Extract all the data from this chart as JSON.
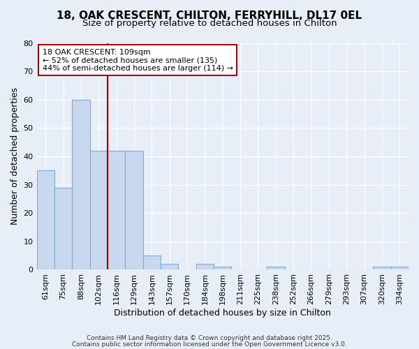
{
  "title_line1": "18, OAK CRESCENT, CHILTON, FERRYHILL, DL17 0EL",
  "title_line2": "Size of property relative to detached houses in Chilton",
  "xlabel": "Distribution of detached houses by size in Chilton",
  "ylabel": "Number of detached properties",
  "bin_labels": [
    "61sqm",
    "75sqm",
    "88sqm",
    "102sqm",
    "116sqm",
    "129sqm",
    "143sqm",
    "157sqm",
    "170sqm",
    "184sqm",
    "198sqm",
    "211sqm",
    "225sqm",
    "238sqm",
    "252sqm",
    "266sqm",
    "279sqm",
    "293sqm",
    "307sqm",
    "320sqm",
    "334sqm"
  ],
  "bar_values": [
    35,
    29,
    60,
    42,
    42,
    42,
    5,
    2,
    0,
    2,
    1,
    0,
    0,
    1,
    0,
    0,
    0,
    0,
    0,
    1,
    1
  ],
  "bar_color": "#c8d8ee",
  "bar_edge_color": "#7aadd4",
  "annotation_text": "18 OAK CRESCENT: 109sqm\n← 52% of detached houses are smaller (135)\n44% of semi-detached houses are larger (114) →",
  "annotation_box_color": "#ffffff",
  "annotation_box_edge_color": "#aa0000",
  "red_line_x": 3.5,
  "ylim": [
    0,
    80
  ],
  "yticks": [
    0,
    10,
    20,
    30,
    40,
    50,
    60,
    70,
    80
  ],
  "footer_line1": "Contains HM Land Registry data © Crown copyright and database right 2025.",
  "footer_line2": "Contains public sector information licensed under the Open Government Licence v3.0.",
  "background_color": "#e8eef8",
  "grid_color": "#ffffff",
  "title1_fontsize": 11,
  "title2_fontsize": 9.5,
  "ann_fontsize": 8.0,
  "xlabel_fontsize": 9,
  "ylabel_fontsize": 9,
  "tick_fontsize": 8
}
